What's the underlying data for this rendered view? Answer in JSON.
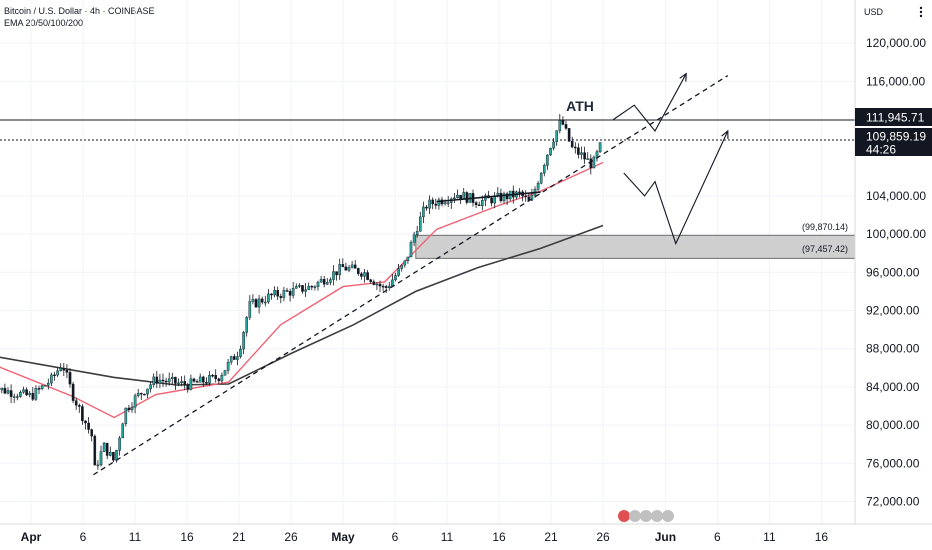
{
  "header": {
    "symbol": "Bitcoin / U.S. Dollar · 4h · COINBASE",
    "indicator": "EMA 20/50/100/200"
  },
  "price_axis": {
    "currency": "USD",
    "labels": [
      "120,000.00",
      "116,000.00",
      "104,000.00",
      "100,000.00",
      "96,000.00",
      "92,000.00",
      "88,000.00",
      "84,000.00",
      "80,000.00",
      "76,000.00",
      "72,000.00"
    ]
  },
  "time_axis": {
    "labels": [
      "Apr",
      "6",
      "11",
      "16",
      "21",
      "26",
      "May",
      "6",
      "11",
      "16",
      "21",
      "26",
      "Jun",
      "6",
      "11",
      "16"
    ]
  },
  "badges": {
    "ath_price": "111,945.71",
    "last_price": "109,859.19",
    "countdown": "44:26"
  },
  "annotations": {
    "ath": "ATH",
    "zone_top": "(99,870.14)",
    "zone_bottom": "(97,457.42)"
  },
  "colors": {
    "up": "#26a69a",
    "down": "#131722",
    "ema_fast": "#f06273",
    "ema_slow": "#3d3d3d",
    "zone": "#cfcfcf",
    "badge_bg": "#131722"
  },
  "chart_data": {
    "type": "candlestick",
    "title": "Bitcoin / U.S. Dollar · 4h · COINBASE",
    "ylim": [
      70000,
      124000
    ],
    "y_ticks": [
      72000,
      76000,
      80000,
      84000,
      88000,
      92000,
      96000,
      100000,
      104000,
      116000,
      120000
    ],
    "price_path": [
      {
        "date": "2025-03-28",
        "price": 84000
      },
      {
        "date": "2025-04-01",
        "price": 83000
      },
      {
        "date": "2025-04-03",
        "price": 84800
      },
      {
        "date": "2025-04-04",
        "price": 86500
      },
      {
        "date": "2025-04-05",
        "price": 83200
      },
      {
        "date": "2025-04-07",
        "price": 78500
      },
      {
        "date": "2025-04-07",
        "price": 75000
      },
      {
        "date": "2025-04-08",
        "price": 77800
      },
      {
        "date": "2025-04-09",
        "price": 76200
      },
      {
        "date": "2025-04-10",
        "price": 81500
      },
      {
        "date": "2025-04-11",
        "price": 82800
      },
      {
        "date": "2025-04-13",
        "price": 84800
      },
      {
        "date": "2025-04-16",
        "price": 84200
      },
      {
        "date": "2025-04-19",
        "price": 85000
      },
      {
        "date": "2025-04-21",
        "price": 87800
      },
      {
        "date": "2025-04-22",
        "price": 92500
      },
      {
        "date": "2025-04-24",
        "price": 93500
      },
      {
        "date": "2025-04-28",
        "price": 94500
      },
      {
        "date": "2025-05-01",
        "price": 96500
      },
      {
        "date": "2025-05-03",
        "price": 96000
      },
      {
        "date": "2025-05-05",
        "price": 94200
      },
      {
        "date": "2025-05-07",
        "price": 97000
      },
      {
        "date": "2025-05-08",
        "price": 100500
      },
      {
        "date": "2025-05-09",
        "price": 103000
      },
      {
        "date": "2025-05-12",
        "price": 104200
      },
      {
        "date": "2025-05-14",
        "price": 103400
      },
      {
        "date": "2025-05-18",
        "price": 104200
      },
      {
        "date": "2025-05-19",
        "price": 103200
      },
      {
        "date": "2025-05-20",
        "price": 106500
      },
      {
        "date": "2025-05-21",
        "price": 109500
      },
      {
        "date": "2025-05-22",
        "price": 111900
      },
      {
        "date": "2025-05-23",
        "price": 109000
      },
      {
        "date": "2025-05-24",
        "price": 108200
      },
      {
        "date": "2025-05-25",
        "price": 107200
      },
      {
        "date": "2025-05-26",
        "price": 109860
      }
    ],
    "ema_fast": [
      {
        "date": "2025-03-28",
        "price": 86500
      },
      {
        "date": "2025-04-05",
        "price": 83000
      },
      {
        "date": "2025-04-09",
        "price": 80800
      },
      {
        "date": "2025-04-13",
        "price": 83200
      },
      {
        "date": "2025-04-20",
        "price": 84500
      },
      {
        "date": "2025-04-25",
        "price": 90500
      },
      {
        "date": "2025-05-01",
        "price": 94500
      },
      {
        "date": "2025-05-05",
        "price": 95000
      },
      {
        "date": "2025-05-10",
        "price": 100500
      },
      {
        "date": "2025-05-16",
        "price": 103000
      },
      {
        "date": "2025-05-20",
        "price": 104500
      },
      {
        "date": "2025-05-26",
        "price": 107500
      }
    ],
    "ema_slow": [
      {
        "date": "2025-03-28",
        "price": 87300
      },
      {
        "date": "2025-04-09",
        "price": 85000
      },
      {
        "date": "2025-04-15",
        "price": 84200
      },
      {
        "date": "2025-04-20",
        "price": 84300
      },
      {
        "date": "2025-04-26",
        "price": 87500
      },
      {
        "date": "2025-05-02",
        "price": 90500
      },
      {
        "date": "2025-05-08",
        "price": 94000
      },
      {
        "date": "2025-05-14",
        "price": 96500
      },
      {
        "date": "2025-05-20",
        "price": 98500
      },
      {
        "date": "2025-05-26",
        "price": 100900
      }
    ],
    "ath": 111945.71,
    "last": 109859.19,
    "support_zone": [
      97457.42,
      99870.14
    ],
    "projection_up": [
      {
        "date": "2025-05-27",
        "price": 112000
      },
      {
        "date": "2025-05-29",
        "price": 113500
      },
      {
        "date": "2025-05-31",
        "price": 110800
      },
      {
        "date": "2025-06-03",
        "price": 116800
      }
    ],
    "projection_down": [
      {
        "date": "2025-05-28",
        "price": 106400
      },
      {
        "date": "2025-05-30",
        "price": 104000
      },
      {
        "date": "2025-05-31",
        "price": 105500
      },
      {
        "date": "2025-06-02",
        "price": 99000
      },
      {
        "date": "2025-06-07",
        "price": 110800
      }
    ],
    "trendline": [
      {
        "date": "2025-04-07",
        "price": 74800
      },
      {
        "date": "2025-06-07",
        "price": 116600
      }
    ]
  }
}
